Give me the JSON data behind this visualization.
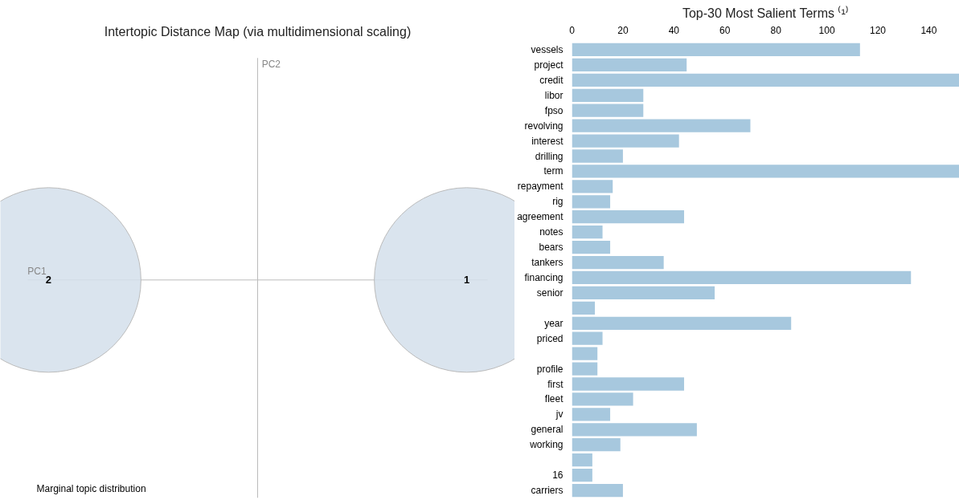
{
  "chart_data": [
    {
      "type": "other",
      "title": "Intertopic Distance Map (via multidimensional scaling)",
      "xlabel": "PC1",
      "ylabel": "PC2",
      "categories": [
        "2",
        "1"
      ],
      "colors": [
        "#d3dfeb",
        "#d3dfeb"
      ],
      "annotations": [
        "Marginal topic distribution"
      ]
    },
    {
      "type": "bar",
      "orientation": "horizontal",
      "title": "Top-30 Most Salient Terms ⁽¹⁾",
      "color": "#a7c8de",
      "grid": false,
      "xlim": [
        0,
        152
      ],
      "xticks": [
        0,
        20,
        40,
        60,
        80,
        100,
        120,
        140
      ],
      "categories": [
        "vessels",
        "project",
        "credit",
        "libor",
        "fpso",
        "revolving",
        "interest",
        "drilling",
        "term",
        "repayment",
        "rig",
        "agreement",
        "notes",
        "bears",
        "tankers",
        "financing",
        "senior",
        null,
        "year",
        "priced",
        null,
        "profile",
        "first",
        "fleet",
        "jv",
        "general",
        "working",
        null,
        "16",
        "carriers"
      ],
      "values": [
        113,
        45,
        152,
        28,
        28,
        70,
        42,
        20,
        152,
        16,
        15,
        44,
        12,
        15,
        36,
        133,
        56,
        9,
        86,
        12,
        10,
        10,
        44,
        24,
        15,
        49,
        19,
        8,
        8,
        20
      ]
    }
  ]
}
